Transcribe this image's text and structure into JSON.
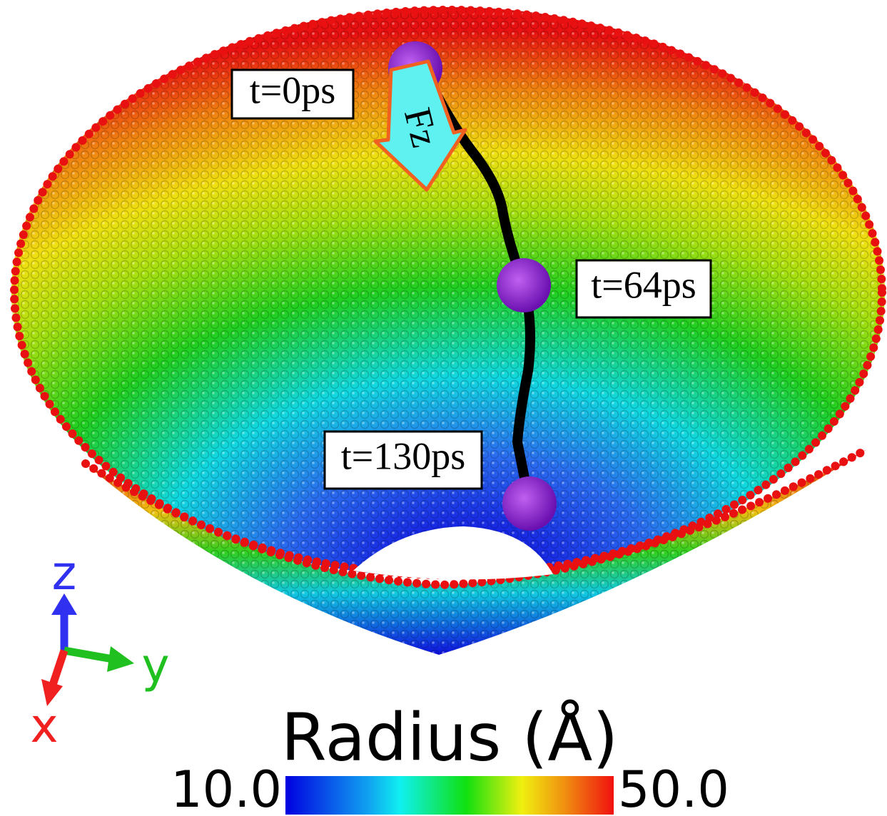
{
  "annotations": [
    "t=0ps",
    "t=64ps",
    "t=130ps"
  ],
  "force_label": "Fz",
  "axes": {
    "z": "z",
    "y": "y",
    "x": "x"
  },
  "colorbar": {
    "title": "Radius (Å)",
    "min": "10.0",
    "max": "50.0"
  }
}
